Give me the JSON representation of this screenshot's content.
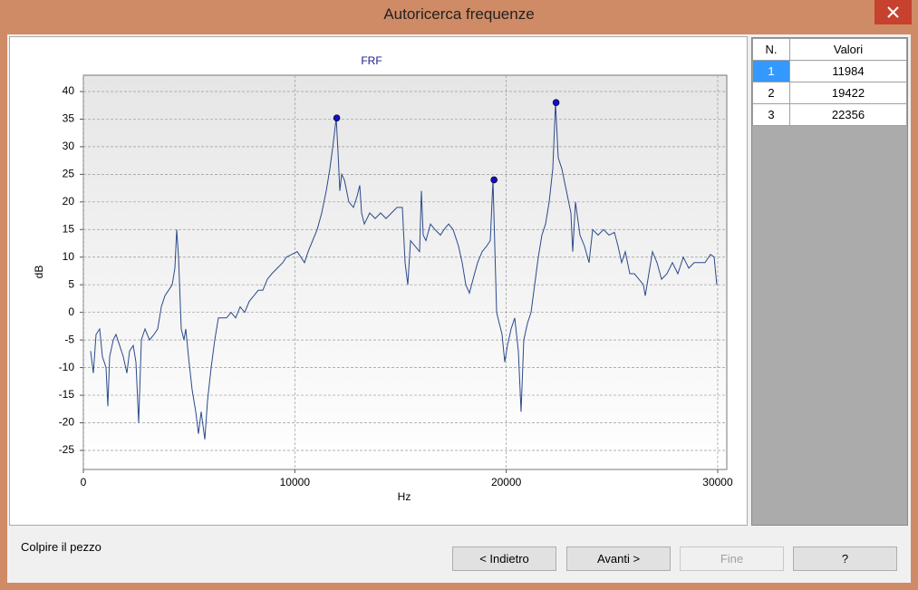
{
  "window": {
    "title": "Autoricerca frequenze"
  },
  "chart_data": {
    "type": "line",
    "title": "FRF",
    "x_label": "Hz",
    "y_label": "dB",
    "xlim": [
      0,
      30430
    ],
    "ylim": [
      -28.45,
      42.95
    ],
    "xticks": [
      0,
      10000,
      20000,
      30000
    ],
    "yticks": [
      -25,
      -20,
      -15,
      -10,
      -5,
      0,
      5,
      10,
      15,
      20,
      25,
      30,
      35,
      40
    ],
    "grid": true,
    "series": [
      {
        "color": "#2b4a8b",
        "x": [
          343,
          471,
          600,
          771,
          900,
          1071,
          1157,
          1243,
          1414,
          1543,
          1714,
          1886,
          2057,
          2186,
          2357,
          2486,
          2614,
          2743,
          2914,
          3129,
          3343,
          3514,
          3686,
          3857,
          4029,
          4200,
          4329,
          4414,
          4500,
          4629,
          4757,
          4843,
          4971,
          5143,
          5314,
          5443,
          5571,
          5743,
          5871,
          6043,
          6214,
          6386,
          6557,
          6771,
          6986,
          7200,
          7414,
          7629,
          7843,
          8057,
          8271,
          8486,
          8700,
          8914,
          9171,
          9429,
          9600,
          9857,
          10114,
          10286,
          10457,
          10629,
          10843,
          11057,
          11271,
          11486,
          11657,
          11829,
          11957,
          12043,
          12129,
          12214,
          12343,
          12557,
          12771,
          12943,
          13071,
          13157,
          13286,
          13543,
          13800,
          14057,
          14314,
          14571,
          14829,
          15086,
          15214,
          15343,
          15471,
          15686,
          15900,
          15986,
          16071,
          16200,
          16414,
          16629,
          16886,
          17057,
          17271,
          17486,
          17743,
          17914,
          18086,
          18257,
          18429,
          18643,
          18857,
          19071,
          19243,
          19371,
          19457,
          19543,
          19671,
          19800,
          19929,
          20057,
          20229,
          20400,
          20571,
          20700,
          20829,
          21000,
          21171,
          21343,
          21514,
          21686,
          21857,
          22029,
          22200,
          22329,
          22457,
          22629,
          22843,
          23057,
          23143,
          23271,
          23486,
          23700,
          23914,
          24086,
          24343,
          24600,
          24857,
          25114,
          25286,
          25457,
          25629,
          25843,
          26057,
          26271,
          26486,
          26571,
          26743,
          26914,
          27129,
          27343,
          27600,
          27857,
          28114,
          28371,
          28629,
          28886,
          29143,
          29400,
          29657,
          29829,
          29957
        ],
        "values": [
          -7,
          -11,
          -4,
          -3,
          -8,
          -10,
          -17,
          -8,
          -5,
          -4,
          -6,
          -8,
          -11,
          -7,
          -6,
          -9,
          -20,
          -5,
          -3,
          -5,
          -4,
          -3,
          1,
          3,
          4,
          5,
          8,
          15,
          10,
          -3,
          -5,
          -3,
          -8,
          -14,
          -18,
          -22,
          -18,
          -23,
          -16,
          -10,
          -5,
          -1,
          -1,
          -1,
          0,
          -1,
          1,
          0,
          2,
          3,
          4,
          4,
          6,
          7,
          8,
          9,
          10,
          10.5,
          11,
          10,
          9,
          11,
          13,
          15,
          18,
          22,
          26,
          31,
          35.2,
          29,
          22,
          25,
          24,
          20,
          19,
          21,
          23,
          18,
          16,
          18,
          17,
          18,
          17,
          18,
          19,
          19,
          9,
          5,
          13,
          12,
          11,
          22,
          14,
          13,
          16,
          15,
          14,
          15,
          16,
          15,
          12,
          9,
          5,
          3.5,
          6,
          9,
          11,
          12,
          13,
          24,
          12,
          0,
          -2,
          -4,
          -9,
          -6,
          -3,
          -1,
          -7,
          -18,
          -5,
          -2,
          0,
          5,
          10,
          14,
          16,
          20,
          26,
          38,
          28,
          26,
          22,
          18,
          11,
          20,
          14,
          12,
          9,
          15,
          14,
          15,
          14,
          14.5,
          12,
          9,
          11,
          7,
          7,
          6,
          5,
          3,
          7,
          11,
          9,
          6,
          7,
          9,
          7,
          10,
          8,
          9,
          9,
          9,
          10.5,
          10,
          5
        ]
      },
      {
        "color": "#1010c8",
        "marker": "circle",
        "x": [
          11984,
          19422,
          22356
        ],
        "values": [
          35.2,
          24,
          38
        ]
      }
    ]
  },
  "table": {
    "columns": [
      "N.",
      "Valori"
    ],
    "rows": [
      [
        1,
        11984
      ],
      [
        2,
        19422
      ],
      [
        3,
        22356
      ]
    ],
    "selected_row": 0
  },
  "status": "Colpire il pezzo",
  "buttons": [
    {
      "label": "< Indietro",
      "enabled": true
    },
    {
      "label": "Avanti >",
      "enabled": true
    },
    {
      "label": "Fine",
      "enabled": false
    },
    {
      "label": "?",
      "enabled": true
    }
  ]
}
